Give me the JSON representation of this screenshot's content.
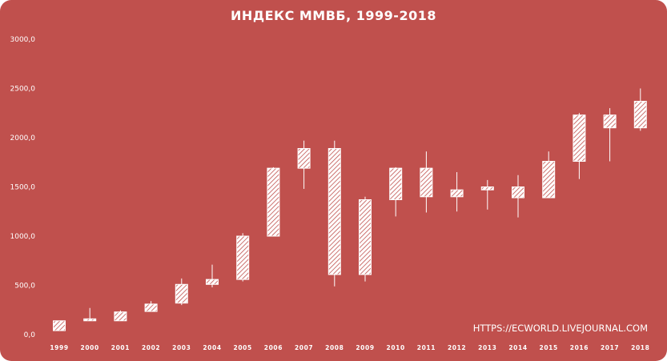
{
  "chart_data": {
    "type": "candlestick",
    "title": "ИНДЕКС ММВБ, 1999-2018",
    "xlabel": "",
    "ylabel": "",
    "ylim": [
      0,
      3000
    ],
    "y_ticks": [
      "0,0",
      "500,0",
      "1000,0",
      "1500,0",
      "2000,0",
      "2500,0",
      "3000,0"
    ],
    "y_tick_values": [
      0,
      500,
      1000,
      1500,
      2000,
      2500,
      3000
    ],
    "grid": false,
    "legend": "none",
    "categories": [
      "1999",
      "2000",
      "2001",
      "2002",
      "2003",
      "2004",
      "2005",
      "2006",
      "2007",
      "2008",
      "2009",
      "2010",
      "2011",
      "2012",
      "2013",
      "2014",
      "2015",
      "2016",
      "2017",
      "2018"
    ],
    "series": [
      {
        "open": [
          40,
          140,
          140,
          235,
          320,
          510,
          560,
          1000,
          1690,
          1890,
          610,
          1370,
          1690,
          1470,
          1470,
          1390,
          1390,
          1760,
          2230,
          2100
        ],
        "high": [
          130,
          270,
          245,
          340,
          570,
          710,
          1030,
          1700,
          1970,
          1970,
          1400,
          1700,
          1860,
          1650,
          1570,
          1620,
          1860,
          2250,
          2300,
          2500
        ],
        "low": [
          40,
          140,
          140,
          235,
          300,
          480,
          540,
          1000,
          1480,
          490,
          540,
          1200,
          1240,
          1250,
          1270,
          1190,
          1390,
          1580,
          1760,
          2070
        ],
        "close": [
          140,
          160,
          230,
          310,
          510,
          560,
          1000,
          1690,
          1890,
          610,
          1370,
          1690,
          1400,
          1400,
          1500,
          1500,
          1760,
          2230,
          2100,
          2370
        ]
      }
    ]
  },
  "watermark": "HTTPS://ECWORLD.LIVEJOURNAL.COM",
  "colors": {
    "background": "#c0504d",
    "foreground": "#ffffff"
  }
}
